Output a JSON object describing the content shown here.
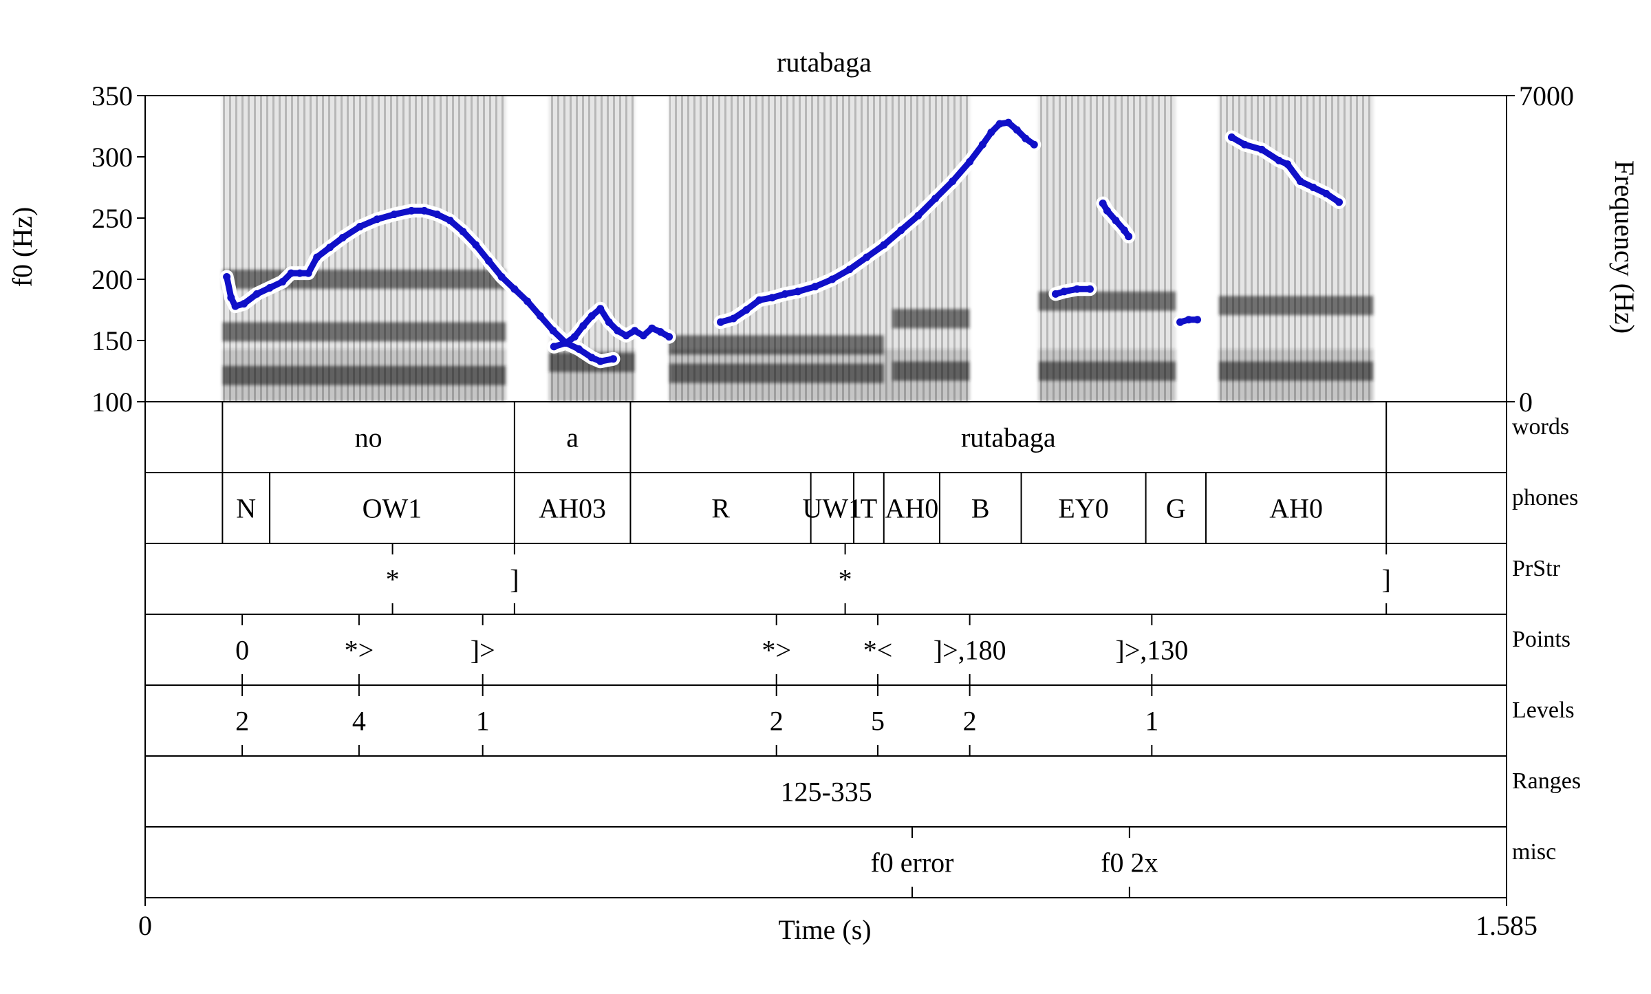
{
  "chart_data": {
    "type": "line",
    "title": "rutabaga",
    "xlabel": "Time (s)",
    "ylabel": "f0 (Hz)",
    "ylabel_right": "Frequency (Hz)",
    "xlim": [
      0,
      1.585
    ],
    "ylim": [
      100,
      350
    ],
    "ylim_right": [
      0,
      7000
    ],
    "x_ticks": [
      "0",
      "1.585"
    ],
    "y_ticks": [
      "100",
      "150",
      "200",
      "250",
      "300",
      "350"
    ],
    "y_ticks_right": [
      "0",
      "7000"
    ],
    "colors": {
      "f0": "#1010c8",
      "halo": "#ffffff",
      "spectrogram": "#222222"
    },
    "spectrogram": {
      "description": "grayscale wideband spectrogram behind the f0 track",
      "voiced_regions": [
        [
          0.09,
          0.42
        ],
        [
          0.47,
          0.57
        ],
        [
          0.61,
          0.96
        ],
        [
          1.04,
          1.2
        ],
        [
          1.25,
          1.43
        ]
      ],
      "formants_hz": [
        [
          0.09,
          0.42,
          600
        ],
        [
          0.09,
          0.42,
          1600
        ],
        [
          0.09,
          0.42,
          2800
        ],
        [
          0.47,
          0.57,
          900
        ],
        [
          0.61,
          0.86,
          650
        ],
        [
          0.61,
          0.86,
          1300
        ],
        [
          0.87,
          0.96,
          700
        ],
        [
          0.87,
          0.96,
          1900
        ],
        [
          1.04,
          1.2,
          700
        ],
        [
          1.04,
          1.2,
          2300
        ],
        [
          1.25,
          1.43,
          700
        ],
        [
          1.25,
          1.43,
          2200
        ]
      ]
    },
    "series": [
      {
        "segments": [
          [
            [
              0.095,
              202
            ],
            [
              0.1,
              185
            ],
            [
              0.105,
              178
            ],
            [
              0.115,
              180
            ],
            [
              0.13,
              188
            ],
            [
              0.145,
              193
            ],
            [
              0.16,
              198
            ],
            [
              0.17,
              205
            ],
            [
              0.18,
              205
            ],
            [
              0.19,
              205
            ],
            [
              0.2,
              218
            ],
            [
              0.215,
              226
            ],
            [
              0.23,
              234
            ],
            [
              0.25,
              243
            ],
            [
              0.27,
              249
            ],
            [
              0.29,
              253
            ],
            [
              0.31,
              256
            ],
            [
              0.325,
              256
            ],
            [
              0.34,
              253
            ],
            [
              0.355,
              248
            ],
            [
              0.37,
              239
            ],
            [
              0.385,
              228
            ],
            [
              0.4,
              215
            ],
            [
              0.415,
              202
            ],
            [
              0.43,
              192
            ],
            [
              0.445,
              182
            ],
            [
              0.46,
              170
            ],
            [
              0.475,
              158
            ],
            [
              0.49,
              148
            ],
            [
              0.505,
              143
            ],
            [
              0.52,
              136
            ],
            [
              0.53,
              133
            ],
            [
              0.545,
              135
            ]
          ],
          [
            [
              0.476,
              145
            ],
            [
              0.49,
              148
            ],
            [
              0.5,
              153
            ],
            [
              0.51,
              162
            ],
            [
              0.52,
              170
            ],
            [
              0.53,
              176
            ],
            [
              0.54,
              165
            ],
            [
              0.55,
              158
            ],
            [
              0.56,
              154
            ],
            [
              0.57,
              158
            ],
            [
              0.58,
              154
            ],
            [
              0.59,
              160
            ],
            [
              0.6,
              157
            ],
            [
              0.61,
              153
            ]
          ],
          [
            [
              0.67,
              165
            ],
            [
              0.685,
              168
            ],
            [
              0.7,
              175
            ],
            [
              0.715,
              183
            ],
            [
              0.73,
              185
            ],
            [
              0.745,
              188
            ],
            [
              0.76,
              190
            ],
            [
              0.78,
              194
            ],
            [
              0.8,
              200
            ],
            [
              0.82,
              208
            ],
            [
              0.84,
              218
            ],
            [
              0.86,
              228
            ],
            [
              0.88,
              240
            ],
            [
              0.9,
              252
            ],
            [
              0.92,
              266
            ],
            [
              0.94,
              280
            ],
            [
              0.96,
              296
            ],
            [
              0.975,
              310
            ],
            [
              0.985,
              320
            ],
            [
              0.995,
              327
            ],
            [
              1.005,
              328
            ],
            [
              1.015,
              322
            ],
            [
              1.025,
              315
            ],
            [
              1.035,
              310
            ]
          ],
          [
            [
              1.06,
              188
            ],
            [
              1.07,
              190
            ],
            [
              1.085,
              192
            ],
            [
              1.1,
              192
            ]
          ],
          [
            [
              1.115,
              262
            ],
            [
              1.12,
              256
            ],
            [
              1.13,
              248
            ],
            [
              1.14,
              240
            ],
            [
              1.145,
              235
            ]
          ],
          [
            [
              1.205,
              165
            ],
            [
              1.215,
              167
            ],
            [
              1.225,
              167
            ]
          ],
          [
            [
              1.265,
              316
            ],
            [
              1.28,
              310
            ],
            [
              1.3,
              306
            ],
            [
              1.32,
              297
            ],
            [
              1.33,
              294
            ],
            [
              1.345,
              280
            ],
            [
              1.36,
              275
            ],
            [
              1.375,
              270
            ],
            [
              1.39,
              263
            ]
          ]
        ]
      }
    ],
    "tiers": [
      {
        "name": "words",
        "type": "interval",
        "boundaries": [
          0.09,
          0.43,
          0.565,
          1.445
        ],
        "labels": [
          [
            0.26,
            "no"
          ],
          [
            0.4975,
            "a"
          ],
          [
            1.005,
            "rutabaga"
          ]
        ]
      },
      {
        "name": "phones",
        "type": "interval",
        "boundaries": [
          0.09,
          0.145,
          0.43,
          0.565,
          0.775,
          0.825,
          0.86,
          0.925,
          1.02,
          1.165,
          1.235,
          1.445
        ],
        "labels": [
          [
            0.1175,
            "N"
          ],
          [
            0.2875,
            "OW1"
          ],
          [
            0.4975,
            "AH03"
          ],
          [
            0.67,
            "R"
          ],
          [
            0.8,
            "UW1"
          ],
          [
            0.8425,
            "T"
          ],
          [
            0.8925,
            "AH0"
          ],
          [
            0.9725,
            "B"
          ],
          [
            1.0925,
            "EY0"
          ],
          [
            1.2,
            "G"
          ],
          [
            1.34,
            "AH0"
          ]
        ]
      },
      {
        "name": "PrStr",
        "type": "point",
        "points": [
          [
            0.288,
            "*"
          ],
          [
            0.43,
            "]"
          ],
          [
            0.815,
            "*"
          ],
          [
            1.445,
            "]"
          ]
        ]
      },
      {
        "name": "Points",
        "type": "point",
        "points": [
          [
            0.113,
            "0"
          ],
          [
            0.249,
            "*>"
          ],
          [
            0.393,
            "]>"
          ],
          [
            0.735,
            "*>"
          ],
          [
            0.853,
            "*<"
          ],
          [
            0.96,
            "]>,180"
          ],
          [
            1.172,
            "]>,130"
          ]
        ]
      },
      {
        "name": "Levels",
        "type": "point",
        "points": [
          [
            0.113,
            "2"
          ],
          [
            0.249,
            "4"
          ],
          [
            0.393,
            "1"
          ],
          [
            0.735,
            "2"
          ],
          [
            0.853,
            "5"
          ],
          [
            0.96,
            "2"
          ],
          [
            1.172,
            "1"
          ]
        ]
      },
      {
        "name": "Ranges",
        "type": "interval",
        "boundaries": [],
        "labels": [
          [
            0.793,
            "125-335"
          ]
        ]
      },
      {
        "name": "misc",
        "type": "point",
        "points": [
          [
            0.893,
            "f0 error"
          ],
          [
            1.146,
            "f0 2x"
          ]
        ]
      }
    ]
  }
}
